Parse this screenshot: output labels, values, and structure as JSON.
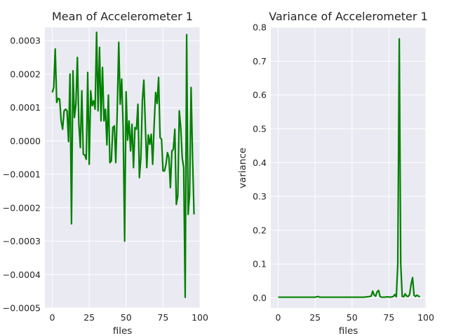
{
  "chart_data": [
    {
      "type": "line",
      "title": "Mean of Accelerometer 1",
      "xlabel": "files",
      "ylabel": "",
      "xlim": [
        -5,
        100
      ],
      "ylim": [
        -0.0005,
        0.00034
      ],
      "xticks": [
        0,
        25,
        50,
        75,
        100
      ],
      "xtick_labels": [
        "0",
        "25",
        "50",
        "75",
        "100"
      ],
      "yticks": [
        -0.0005,
        -0.0004,
        -0.0003,
        -0.0002,
        -0.0001,
        0.0,
        0.0001,
        0.0002,
        0.0003
      ],
      "ytick_labels": [
        "−0.0005",
        "−0.0004",
        "−0.0003",
        "−0.0002",
        "−0.0001",
        "0.0000",
        "0.0001",
        "0.0002",
        "0.0003"
      ],
      "grid": true,
      "color": "#008000",
      "x": [
        0,
        1,
        2,
        3,
        4,
        5,
        6,
        7,
        8,
        9,
        10,
        11,
        12,
        13,
        14,
        15,
        16,
        17,
        18,
        19,
        20,
        21,
        22,
        23,
        24,
        25,
        26,
        27,
        28,
        29,
        30,
        31,
        32,
        33,
        34,
        35,
        36,
        37,
        38,
        39,
        40,
        41,
        42,
        43,
        44,
        45,
        46,
        47,
        48,
        49,
        50,
        51,
        52,
        53,
        54,
        55,
        56,
        57,
        58,
        59,
        60,
        61,
        62,
        63,
        64,
        65,
        66,
        67,
        68,
        69,
        70,
        71,
        72,
        73,
        74,
        75,
        76,
        77,
        78,
        79,
        80,
        81,
        82,
        83,
        84,
        85,
        86,
        87,
        88,
        89,
        90,
        91,
        92,
        93,
        94,
        95,
        96
      ],
      "values": [
        0.000145,
        0.00016,
        0.000275,
        0.000115,
        0.000127,
        0.000125,
        6e-05,
        3.5e-05,
        9e-05,
        9.5e-05,
        9e-05,
        -2e-06,
        0.0002,
        -0.000248,
        0.00021,
        7e-05,
        0.00011,
        0.00025,
        5e-05,
        -2e-05,
        0.00015,
        -4e-05,
        -4.2e-05,
        -5.5e-05,
        0.000205,
        -7e-05,
        0.00015,
        0.000105,
        0.00012,
        9.5e-05,
        0.000325,
        9e-05,
        0.00028,
        6e-05,
        0.00022,
        6e-05,
        9.5e-05,
        -1.2e-05,
        0.000137,
        -6.5e-05,
        -6e-05,
        4e-05,
        4.5e-05,
        -6.5e-05,
        9e-05,
        0.000295,
        0.00011,
        0.000185,
        4e-05,
        -0.0003,
        0.000147,
        2e-06,
        6e-05,
        -3e-05,
        5e-05,
        -8e-05,
        4e-05,
        3.5e-05,
        0.00011,
        -0.00011,
        -5e-05,
        0.00012,
        0.000182,
        5e-05,
        -8e-05,
        1.8e-05,
        -1e-05,
        2e-05,
        -7e-05,
        5e-05,
        0.000145,
        0.000112,
        0.00019,
        1e-05,
        5e-06,
        -9e-05,
        -9e-05,
        -7e-05,
        -3.5e-05,
        -5e-05,
        -0.00014,
        -3e-05,
        -2.5e-05,
        3.5e-05,
        -0.00019,
        -0.000165,
        9e-05,
        4e-05,
        -5e-05,
        -8e-05,
        -0.000468,
        0.000318,
        -0.00022,
        -0.00016,
        0.00016,
        -5e-05,
        -0.00022
      ]
    },
    {
      "type": "line",
      "title": "Variance of Accelerometer 1",
      "xlabel": "files",
      "ylabel": "variance",
      "xlim": [
        -5,
        100
      ],
      "ylim": [
        -0.03,
        0.8
      ],
      "xticks": [
        0,
        25,
        50,
        75,
        100
      ],
      "xtick_labels": [
        "0",
        "25",
        "50",
        "75",
        "100"
      ],
      "yticks": [
        0.0,
        0.1,
        0.2,
        0.3,
        0.4,
        0.5,
        0.6,
        0.7,
        0.8
      ],
      "ytick_labels": [
        "0.0",
        "0.1",
        "0.2",
        "0.3",
        "0.4",
        "0.5",
        "0.6",
        "0.7",
        "0.8"
      ],
      "grid": true,
      "color": "#008000",
      "x": [
        0,
        5,
        10,
        15,
        20,
        25,
        26,
        27,
        28,
        30,
        35,
        40,
        45,
        50,
        55,
        58,
        60,
        62,
        63,
        64,
        65,
        66,
        67,
        68,
        69,
        70,
        72,
        74,
        76,
        78,
        79,
        80,
        81,
        82,
        83,
        84,
        85,
        86,
        87,
        88,
        89,
        90,
        91,
        92,
        93,
        94,
        95,
        96
      ],
      "values": [
        0.002,
        0.002,
        0.002,
        0.002,
        0.002,
        0.002,
        0.003,
        0.004,
        0.002,
        0.002,
        0.002,
        0.002,
        0.002,
        0.002,
        0.002,
        0.002,
        0.003,
        0.004,
        0.005,
        0.02,
        0.008,
        0.005,
        0.018,
        0.022,
        0.004,
        0.002,
        0.002,
        0.003,
        0.002,
        0.004,
        0.01,
        0.003,
        0.1,
        0.766,
        0.1,
        0.004,
        0.003,
        0.012,
        0.005,
        0.004,
        0.01,
        0.04,
        0.06,
        0.008,
        0.004,
        0.008,
        0.005,
        0.003
      ]
    }
  ]
}
